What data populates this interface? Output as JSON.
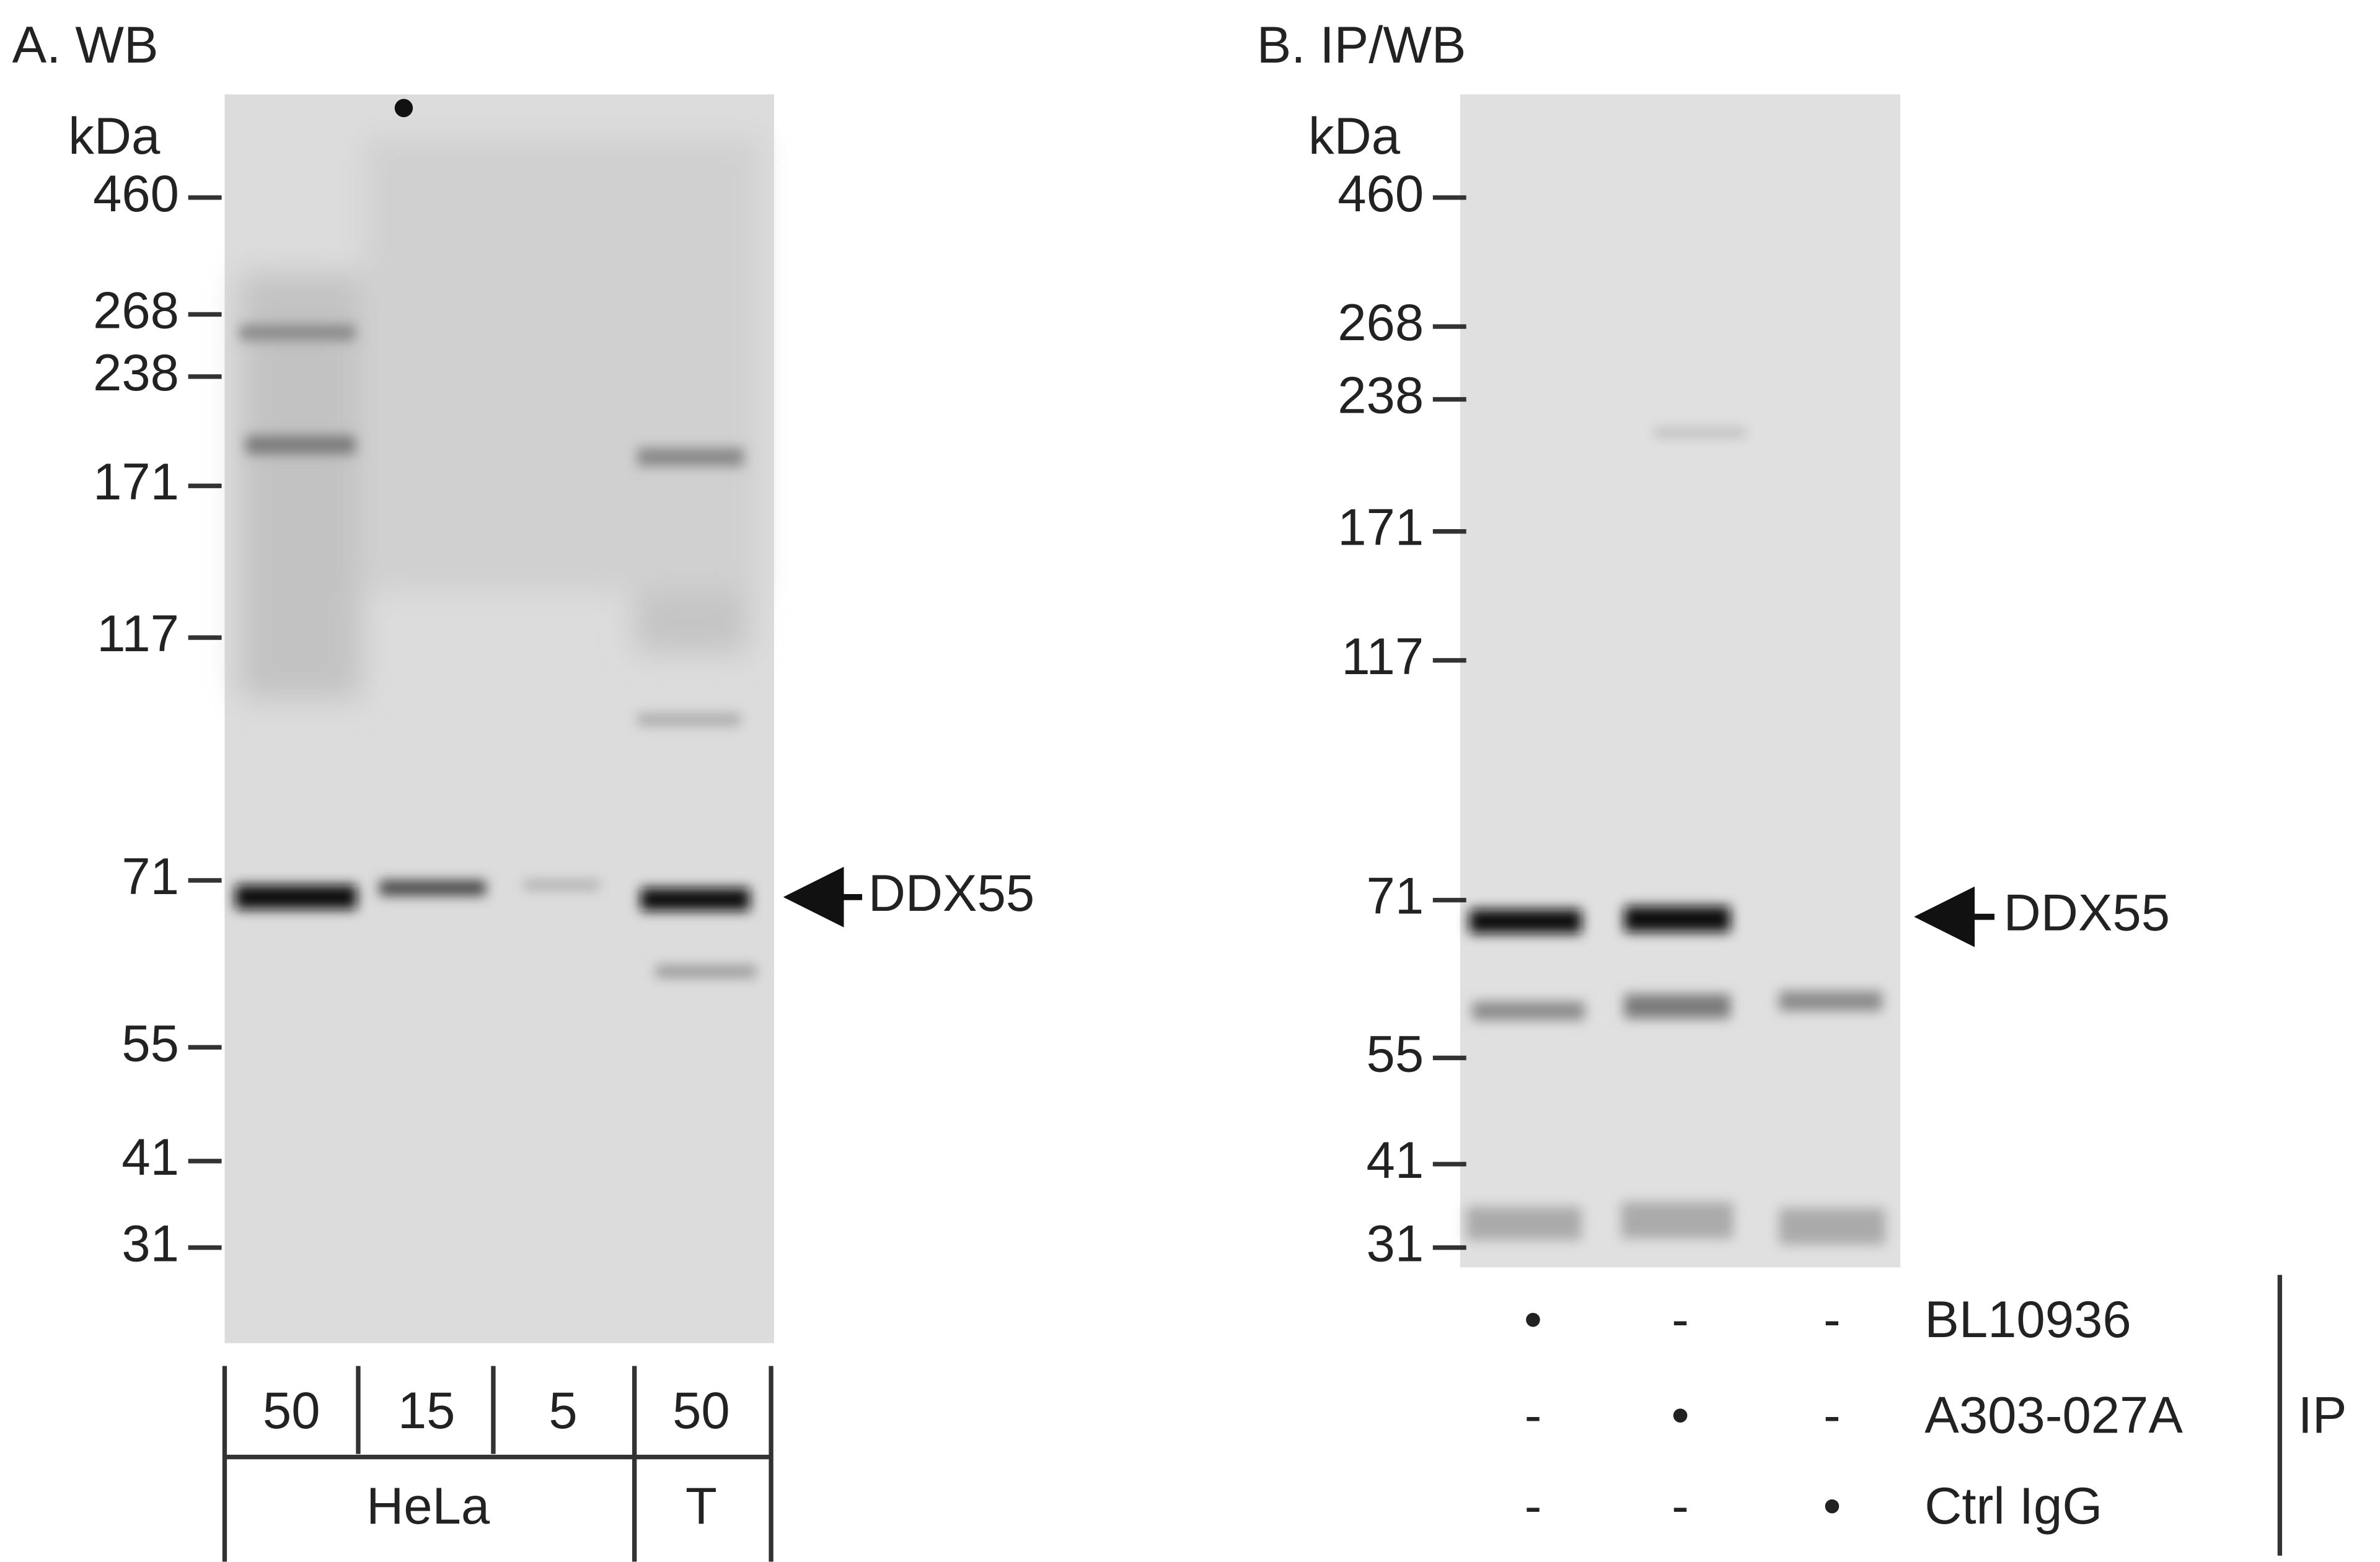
{
  "panel_a": {
    "title": "A. WB",
    "unit": "kDa",
    "markers": [
      "460",
      "268",
      "238",
      "171",
      "117",
      "71",
      "55",
      "41",
      "31"
    ],
    "target": "DDX55",
    "lanes": [
      "50",
      "15",
      "5",
      "50"
    ],
    "groups": [
      "HeLa",
      "T"
    ]
  },
  "panel_b": {
    "title": "B. IP/WB",
    "unit": "kDa",
    "markers": [
      "460",
      "268",
      "238",
      "171",
      "117",
      "71",
      "55",
      "41",
      "31"
    ],
    "target": "DDX55",
    "antibodies": [
      "BL10936",
      "A303-027A",
      "Ctrl IgG"
    ],
    "signs": [
      [
        "•",
        "-",
        "-"
      ],
      [
        "-",
        "•",
        "-"
      ],
      [
        "-",
        "-",
        "•"
      ]
    ],
    "ip_label": "IP"
  }
}
